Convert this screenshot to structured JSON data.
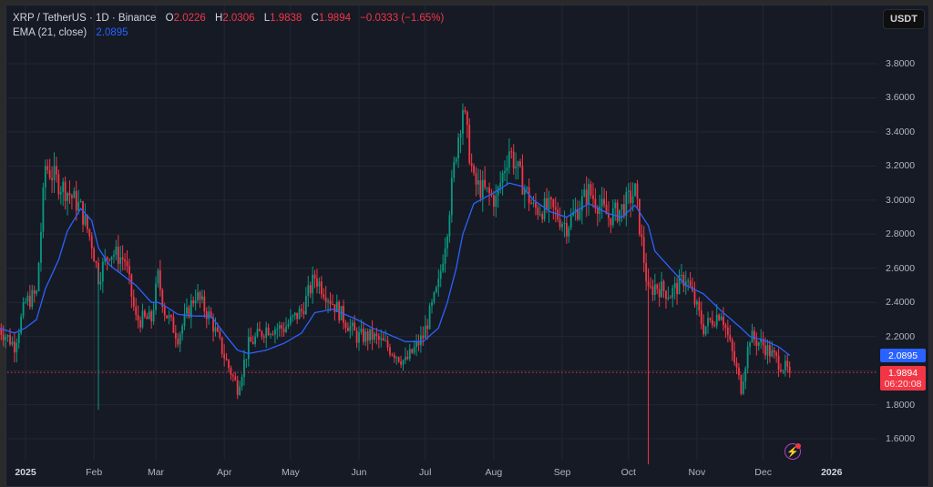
{
  "header": {
    "symbol": "XRP / TetherUS · 1D · Binance",
    "open_label": "O",
    "open": "2.0226",
    "high_label": "H",
    "high": "2.0306",
    "low_label": "L",
    "low": "1.9838",
    "close_label": "C",
    "close": "1.9894",
    "change": "−0.0333 (−1.65%)",
    "ema_label": "EMA (21, close)",
    "ema_value": "2.0895"
  },
  "currency_button": "USDT",
  "price_scale": {
    "ticks": [
      "3.8000",
      "3.6000",
      "3.4000",
      "3.2000",
      "3.0000",
      "2.8000",
      "2.6000",
      "2.4000",
      "2.2000",
      "1.8000",
      "1.6000"
    ],
    "ema_tag": "2.0895",
    "last_price_tag": "1.9894",
    "countdown": "06:20:08"
  },
  "time_scale": {
    "ticks": [
      {
        "label": "2025",
        "year": true
      },
      {
        "label": "Feb"
      },
      {
        "label": "Mar"
      },
      {
        "label": "Apr"
      },
      {
        "label": "May"
      },
      {
        "label": "Jun"
      },
      {
        "label": "Jul"
      },
      {
        "label": "Aug"
      },
      {
        "label": "Sep"
      },
      {
        "label": "Oct"
      },
      {
        "label": "Nov"
      },
      {
        "label": "Dec"
      },
      {
        "label": "2026",
        "year": true
      }
    ]
  },
  "icons": {
    "alert": "lightning-bolt-icon"
  },
  "colors": {
    "up": "#089981",
    "down": "#f23645",
    "ema": "#2962ff",
    "background": "#161a25",
    "grid": "#232733",
    "text": "#b2b5be"
  },
  "chart_data": {
    "type": "candlestick",
    "title": "XRP / TetherUS · 1D · Binance",
    "indicator": "EMA (21, close)",
    "ylabel": "USDT",
    "ylim": [
      1.55,
      3.9
    ],
    "grid": true,
    "x_ticks": [
      "2025",
      "Feb",
      "Mar",
      "Apr",
      "May",
      "Jun",
      "Jul",
      "Aug",
      "Sep",
      "Oct",
      "Nov",
      "Dec",
      "2026"
    ],
    "y_ticks": [
      1.6,
      1.8,
      2.0,
      2.2,
      2.4,
      2.6,
      2.8,
      3.0,
      3.2,
      3.4,
      3.6,
      3.8
    ],
    "last": {
      "open": 2.0226,
      "high": 2.0306,
      "low": 1.9838,
      "close": 1.9894,
      "change": -0.0333,
      "change_pct": -1.65
    },
    "ema_last": 2.0895,
    "close_path": {
      "dates": [
        "2024-12-20",
        "2024-12-27",
        "2025-01-01",
        "2025-01-06",
        "2025-01-10",
        "2025-01-16",
        "2025-01-20",
        "2025-01-26",
        "2025-01-31",
        "2025-02-03",
        "2025-02-08",
        "2025-02-15",
        "2025-02-20",
        "2025-02-27",
        "2025-03-02",
        "2025-03-05",
        "2025-03-11",
        "2025-03-19",
        "2025-03-26",
        "2025-04-02",
        "2025-04-07",
        "2025-04-12",
        "2025-04-20",
        "2025-04-28",
        "2025-05-06",
        "2025-05-12",
        "2025-05-20",
        "2025-05-31",
        "2025-06-07",
        "2025-06-13",
        "2025-06-22",
        "2025-06-30",
        "2025-07-07",
        "2025-07-11",
        "2025-07-15",
        "2025-07-18",
        "2025-07-23",
        "2025-08-02",
        "2025-08-08",
        "2025-08-14",
        "2025-08-19",
        "2025-08-27",
        "2025-09-03",
        "2025-09-13",
        "2025-09-22",
        "2025-09-28",
        "2025-10-04",
        "2025-10-10",
        "2025-10-13",
        "2025-10-20",
        "2025-10-27",
        "2025-11-04",
        "2025-11-12",
        "2025-11-21",
        "2025-11-25",
        "2025-12-01",
        "2025-12-08",
        "2025-12-13"
      ],
      "close": [
        2.25,
        2.15,
        2.4,
        2.45,
        3.2,
        3.1,
        3.05,
        2.95,
        2.75,
        2.55,
        2.7,
        2.65,
        2.3,
        2.3,
        2.55,
        2.35,
        2.2,
        2.45,
        2.3,
        2.05,
        1.9,
        2.15,
        2.25,
        2.25,
        2.35,
        2.55,
        2.4,
        2.2,
        2.2,
        2.15,
        2.05,
        2.2,
        2.5,
        2.85,
        3.3,
        3.55,
        3.1,
        3.0,
        3.3,
        3.1,
        2.95,
        2.95,
        2.85,
        3.05,
        2.9,
        2.95,
        3.05,
        2.45,
        2.5,
        2.45,
        2.55,
        2.25,
        2.35,
        1.9,
        2.2,
        2.15,
        2.05,
        1.9894
      ],
      "ema": [
        2.25,
        2.22,
        2.25,
        2.3,
        2.48,
        2.65,
        2.82,
        2.95,
        2.88,
        2.72,
        2.62,
        2.55,
        2.5,
        2.4,
        2.4,
        2.38,
        2.33,
        2.32,
        2.32,
        2.2,
        2.12,
        2.1,
        2.12,
        2.16,
        2.22,
        2.34,
        2.36,
        2.3,
        2.25,
        2.22,
        2.17,
        2.17,
        2.25,
        2.4,
        2.6,
        2.8,
        2.98,
        3.05,
        3.1,
        3.08,
        3.0,
        2.93,
        2.9,
        2.98,
        2.92,
        2.9,
        2.97,
        2.85,
        2.7,
        2.6,
        2.5,
        2.45,
        2.35,
        2.25,
        2.2,
        2.18,
        2.14,
        2.0895
      ]
    }
  }
}
